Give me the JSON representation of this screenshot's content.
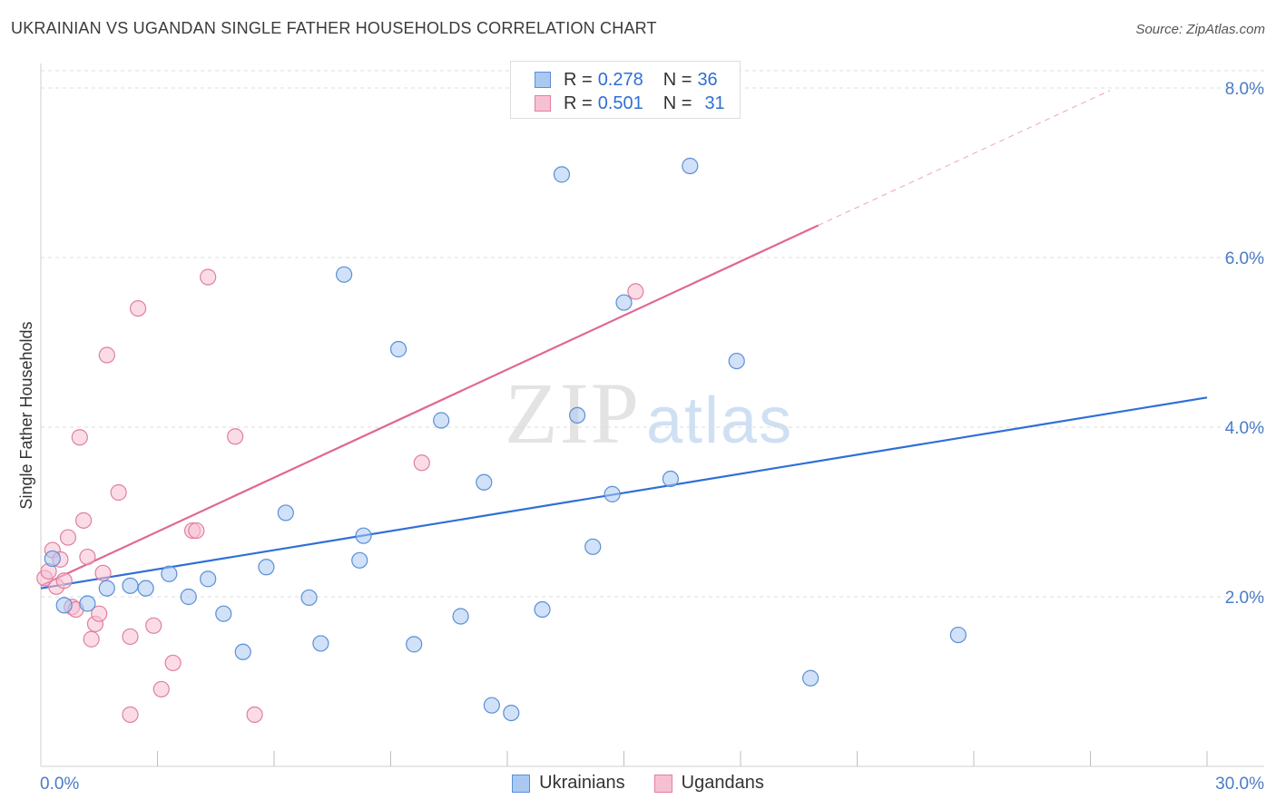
{
  "header": {
    "title": "UKRAINIAN VS UGANDAN SINGLE FATHER HOUSEHOLDS CORRELATION CHART",
    "source": "Source: ZipAtlas.com"
  },
  "legend": {
    "rows": [
      {
        "r_label": "R =",
        "r_value": "0.278",
        "n_label": "N =",
        "n_value": "36",
        "color": "#a9c9f2",
        "border": "#5b8fd6"
      },
      {
        "r_label": "R =",
        "r_value": "0.501",
        "n_label": "N =",
        "n_value": "31",
        "color": "#f7c0d2",
        "border": "#e07fa0"
      }
    ],
    "bottom": [
      {
        "label": "Ukrainians",
        "color": "#a9c9f2",
        "border": "#5b8fd6"
      },
      {
        "label": "Ugandans",
        "color": "#f7c0d2",
        "border": "#e07fa0"
      }
    ]
  },
  "watermark": {
    "zip": "ZIP",
    "atlas": "atlas"
  },
  "chart_data": {
    "type": "scatter",
    "title": "UKRAINIAN VS UGANDAN SINGLE FATHER HOUSEHOLDS CORRELATION CHART",
    "xlabel": "",
    "ylabel": "Single Father Households",
    "xlim": [
      0,
      30
    ],
    "ylim": [
      0,
      8.2
    ],
    "x_tick_labels": [
      "0.0%",
      "30.0%"
    ],
    "y_ticks": [
      2,
      4,
      6,
      8
    ],
    "y_tick_labels": [
      "2.0%",
      "4.0%",
      "6.0%",
      "8.0%"
    ],
    "grid": "horizontal dashed",
    "legend_position": "top-center",
    "series": [
      {
        "name": "Ukrainians",
        "color": "#a9c9f2",
        "stroke": "#5b8fd6",
        "line_color": "#2f6fd6",
        "trend": {
          "x": [
            0,
            30
          ],
          "y": [
            2.1,
            4.35
          ]
        },
        "points": [
          [
            0.3,
            2.45
          ],
          [
            0.6,
            1.9
          ],
          [
            1.2,
            1.92
          ],
          [
            1.7,
            2.1
          ],
          [
            2.3,
            2.13
          ],
          [
            2.7,
            2.1
          ],
          [
            3.3,
            2.27
          ],
          [
            3.8,
            2.0
          ],
          [
            4.3,
            2.21
          ],
          [
            4.7,
            1.8
          ],
          [
            5.2,
            1.35
          ],
          [
            5.8,
            2.35
          ],
          [
            6.3,
            2.99
          ],
          [
            6.9,
            1.99
          ],
          [
            7.2,
            1.45
          ],
          [
            7.8,
            5.8
          ],
          [
            8.3,
            2.72
          ],
          [
            8.2,
            2.43
          ],
          [
            9.2,
            4.92
          ],
          [
            9.6,
            1.44
          ],
          [
            10.3,
            4.08
          ],
          [
            10.8,
            1.77
          ],
          [
            11.4,
            3.35
          ],
          [
            11.6,
            0.72
          ],
          [
            12.1,
            0.63
          ],
          [
            12.9,
            1.85
          ],
          [
            13.4,
            6.98
          ],
          [
            13.8,
            4.14
          ],
          [
            14.2,
            2.59
          ],
          [
            14.7,
            3.21
          ],
          [
            15.0,
            5.47
          ],
          [
            16.2,
            3.39
          ],
          [
            16.7,
            7.08
          ],
          [
            17.9,
            4.78
          ],
          [
            19.8,
            1.04
          ],
          [
            23.6,
            1.55
          ]
        ]
      },
      {
        "name": "Ugandans",
        "color": "#f7c0d2",
        "stroke": "#e07fa0",
        "line_color": "#e06890",
        "trend": {
          "x": [
            0,
            20
          ],
          "y": [
            2.13,
            6.38
          ]
        },
        "trend_dashed": {
          "x": [
            20,
            27.5
          ],
          "y": [
            6.38,
            7.97
          ]
        },
        "points": [
          [
            0.1,
            2.22
          ],
          [
            0.2,
            2.3
          ],
          [
            0.3,
            2.55
          ],
          [
            0.4,
            2.12
          ],
          [
            0.5,
            2.44
          ],
          [
            0.6,
            2.19
          ],
          [
            0.7,
            2.7
          ],
          [
            0.8,
            1.88
          ],
          [
            0.9,
            1.85
          ],
          [
            1.0,
            3.88
          ],
          [
            1.1,
            2.9
          ],
          [
            1.2,
            2.47
          ],
          [
            1.3,
            1.5
          ],
          [
            1.4,
            1.68
          ],
          [
            1.5,
            1.8
          ],
          [
            1.6,
            2.28
          ],
          [
            1.7,
            4.85
          ],
          [
            2.0,
            3.23
          ],
          [
            2.3,
            1.53
          ],
          [
            2.5,
            5.4
          ],
          [
            2.9,
            1.66
          ],
          [
            3.1,
            0.91
          ],
          [
            3.4,
            1.22
          ],
          [
            3.9,
            2.78
          ],
          [
            4.3,
            5.77
          ],
          [
            5.0,
            3.89
          ],
          [
            5.5,
            0.61
          ],
          [
            9.8,
            3.58
          ],
          [
            15.3,
            5.6
          ],
          [
            2.3,
            0.61
          ],
          [
            4.0,
            2.78
          ]
        ]
      }
    ]
  }
}
